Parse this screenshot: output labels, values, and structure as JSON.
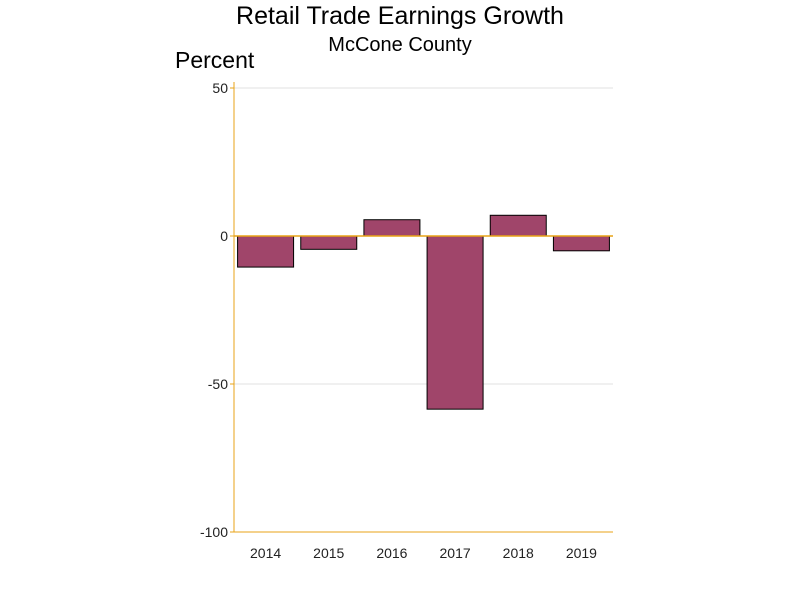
{
  "chart_data": {
    "type": "bar",
    "title": "Retail Trade Earnings Growth",
    "subtitle": "McCone County",
    "ylabel": "Percent",
    "xlabel": "",
    "categories": [
      "2014",
      "2015",
      "2016",
      "2017",
      "2018",
      "2019"
    ],
    "values": [
      -10.5,
      -4.5,
      5.5,
      -58.5,
      7.0,
      -5.0
    ],
    "ylim": [
      -100,
      50
    ],
    "yticks": [
      50,
      0,
      -50,
      -100
    ],
    "grid": true,
    "colors": {
      "bar": "#a0456a",
      "axis": "#e8a317",
      "grid": "#e0e0e0",
      "bar_outline": "#000000"
    }
  }
}
